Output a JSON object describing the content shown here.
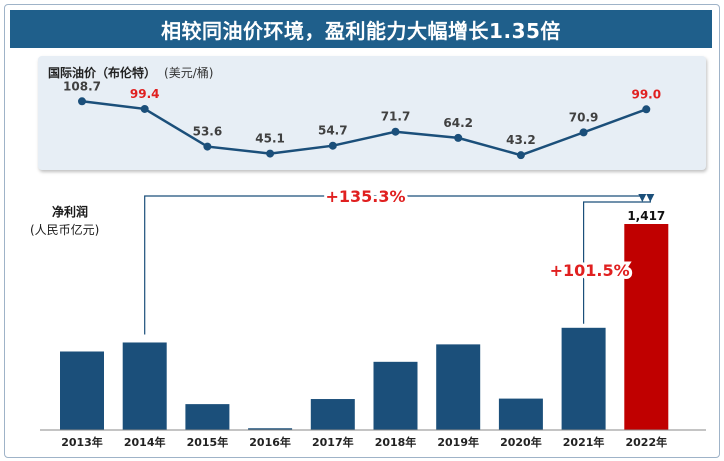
{
  "header": {
    "title": "相较同油价环境，盈利能力大幅增长1.35倍"
  },
  "oil_panel": {
    "title": "国际油价（布伦特）",
    "unit": "(美元/桶)"
  },
  "profit_axis": {
    "label_line1": "净利润",
    "label_line2": "(人民币亿元)"
  },
  "annotations": {
    "growth_total": "+135.3%",
    "growth_yoy": "+101.5%"
  },
  "colors": {
    "navy": "#1b4f7a",
    "red": "#c00000",
    "highlight_label": "#e02020",
    "banner": "#1f5f8b"
  },
  "chart_data": [
    {
      "type": "line",
      "title": "国际油价（布伦特）",
      "ylabel": "(美元/桶)",
      "x": [
        "2013年",
        "2014年",
        "2015年",
        "2016年",
        "2017年",
        "2018年",
        "2019年",
        "2020年",
        "2021年",
        "2022年"
      ],
      "values": [
        108.7,
        99.4,
        53.6,
        45.1,
        54.7,
        71.7,
        64.2,
        43.2,
        70.9,
        99.0
      ],
      "value_labels": [
        "108.7",
        "99.4",
        "53.6",
        "45.1",
        "54.7",
        "71.7",
        "64.2",
        "43.2",
        "70.9",
        "99.0"
      ],
      "highlighted": [
        false,
        true,
        false,
        false,
        false,
        false,
        false,
        false,
        false,
        true
      ],
      "ylim": [
        30,
        120
      ]
    },
    {
      "type": "bar",
      "title": "净利润",
      "ylabel": "(人民币亿元)",
      "categories": [
        "2013年",
        "2014年",
        "2015年",
        "2016年",
        "2017年",
        "2018年",
        "2019年",
        "2020年",
        "2021年",
        "2022年"
      ],
      "values": [
        540,
        602,
        178,
        12,
        213,
        469,
        589,
        216,
        703,
        1417
      ],
      "value_labels": [
        "",
        "",
        "",
        "",
        "",
        "",
        "",
        "",
        "",
        "1,417"
      ],
      "highlighted": [
        false,
        false,
        false,
        false,
        false,
        false,
        false,
        false,
        false,
        true
      ],
      "ylim": [
        0,
        1417
      ]
    }
  ]
}
